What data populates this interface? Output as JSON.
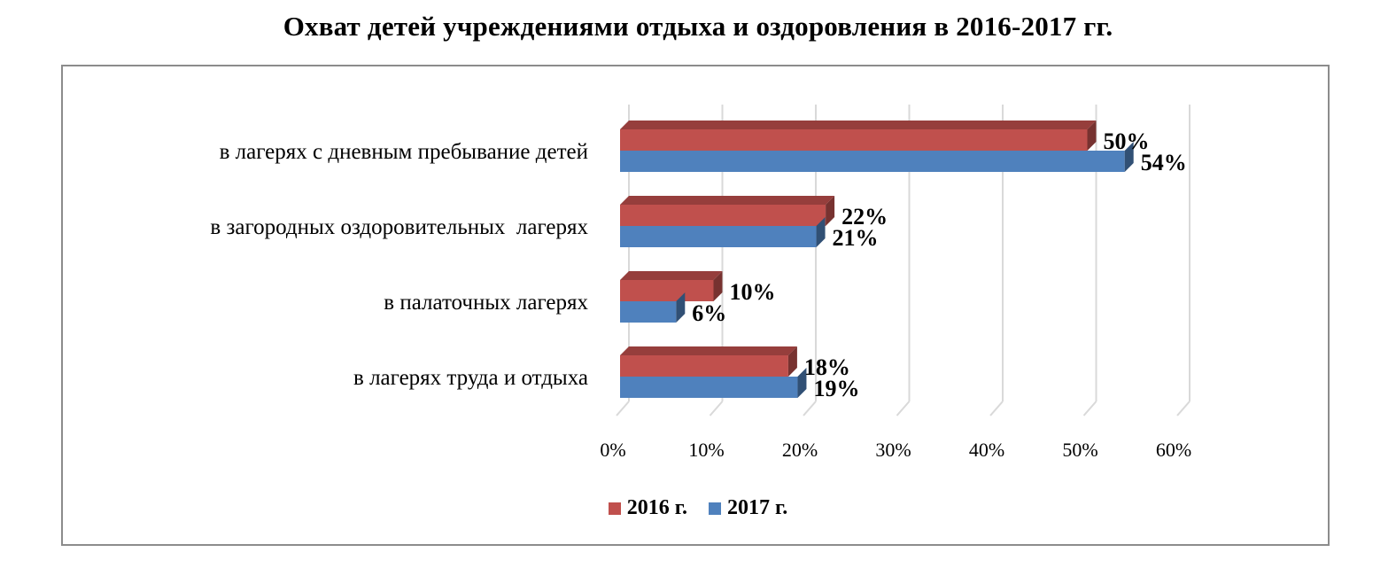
{
  "chart_data": {
    "type": "bar",
    "orientation": "horizontal",
    "title": "Охват детей учреждениями отдыха и оздоровления в 2016-2017 гг.",
    "categories": [
      "в лагерях с дневным пребывание детей",
      "в загородных оздоровительных  лагерях",
      "в палаточных лагерях",
      "в лагерях труда и отдыха"
    ],
    "series": [
      {
        "name": "2016 г.",
        "color": "#c0504d",
        "values": [
          50,
          22,
          10,
          18
        ],
        "labels": [
          "50%",
          "22%",
          "10%",
          "18%"
        ]
      },
      {
        "name": "2017 г.",
        "color": "#4f81bd",
        "values": [
          54,
          21,
          6,
          19
        ],
        "labels": [
          "54%",
          "21%",
          "6%",
          "19%"
        ]
      }
    ],
    "xlim": [
      0,
      60
    ],
    "xticks": [
      "0%",
      "10%",
      "20%",
      "30%",
      "40%",
      "50%",
      "60%"
    ],
    "grid": true,
    "legend_position": "bottom",
    "style": "3d"
  }
}
